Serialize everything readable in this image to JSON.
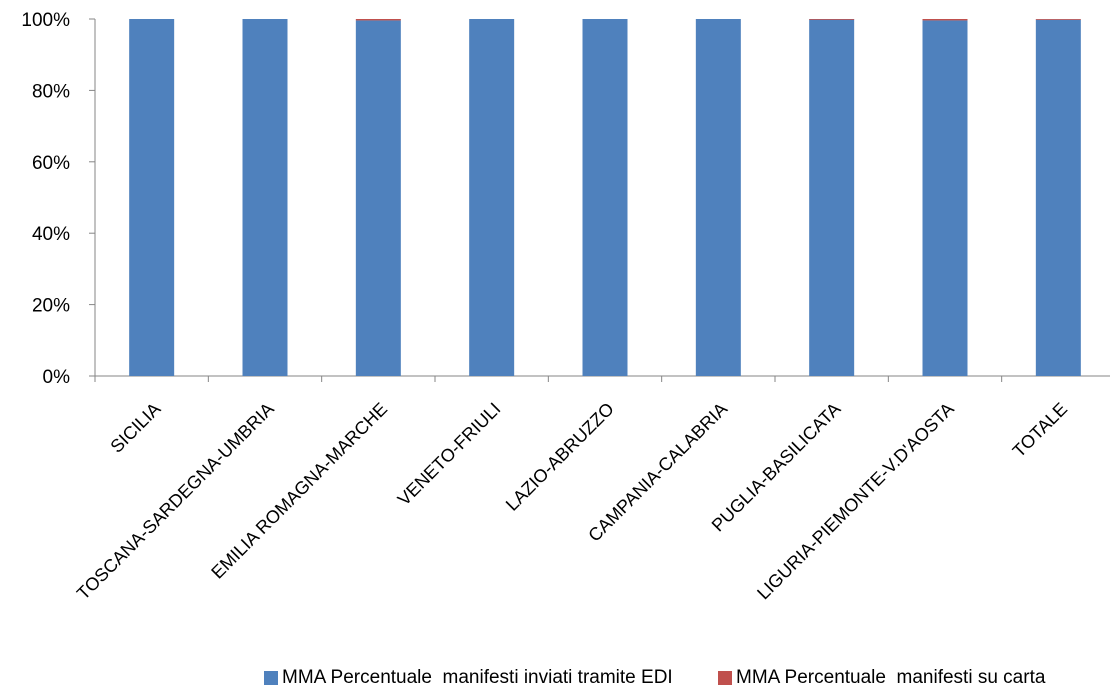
{
  "chart_data": {
    "type": "bar",
    "stacked": true,
    "percent_stacked": true,
    "categories": [
      "SICILIA",
      "TOSCANA-SARDEGNA-UMBRIA",
      "EMILIA ROMAGNA-MARCHE",
      "VENETO-FRIULI",
      "LAZIO-ABRUZZO",
      "CAMPANIA-CALABRIA",
      "PUGLIA-BASILICATA",
      "LIGURIA-PIEMONTE-V.D'AOSTA",
      "TOTALE"
    ],
    "series": [
      {
        "name": "MMA Percentuale  manifesti inviati tramite EDI",
        "color": "#4F81BD",
        "values": [
          100,
          100,
          99.6,
          100,
          100,
          100,
          99.9,
          99.6,
          99.8
        ]
      },
      {
        "name": "MMA Percentuale  manifesti su carta",
        "color": "#C0504D",
        "values": [
          0,
          0,
          0.4,
          0,
          0,
          0,
          0.1,
          0.4,
          0.2
        ]
      }
    ],
    "yticks": [
      "0%",
      "20%",
      "40%",
      "60%",
      "80%",
      "100%"
    ],
    "ylim": [
      0,
      100
    ],
    "grid": false,
    "legend_position": "bottom"
  }
}
